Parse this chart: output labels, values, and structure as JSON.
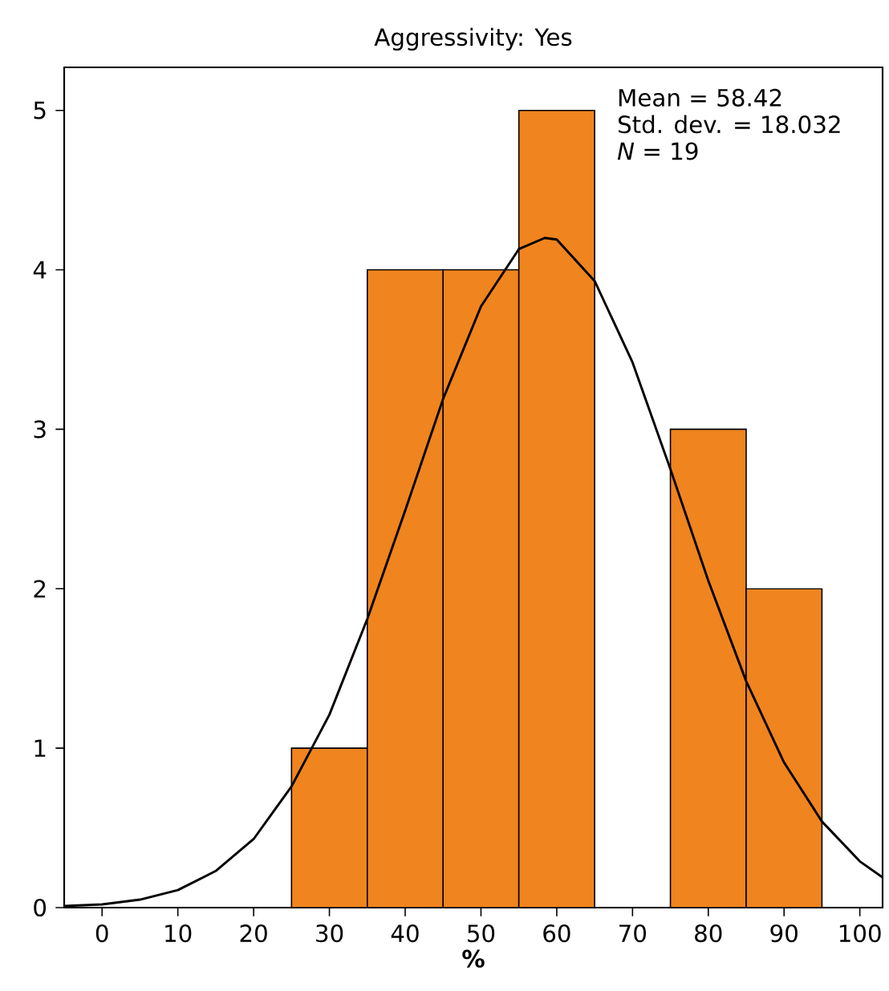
{
  "chart_data": {
    "type": "histogram",
    "title": "Aggressivity: Yes",
    "xlabel": "%",
    "bins": [
      25,
      35,
      45,
      55,
      65,
      75,
      85,
      95
    ],
    "values": [
      1,
      4,
      4,
      5,
      0,
      3,
      2
    ],
    "color": "#f0841e",
    "series": [
      {
        "type": "line",
        "color": "#000000",
        "x": [
          -5,
          0,
          5,
          10,
          15,
          20,
          25,
          30,
          35,
          40,
          45,
          50,
          55,
          58.42,
          60,
          65,
          70,
          75,
          80,
          85,
          90,
          95,
          100,
          103
        ],
        "values": [
          0.01,
          0.02,
          0.05,
          0.11,
          0.23,
          0.43,
          0.76,
          1.21,
          1.81,
          2.49,
          3.19,
          3.77,
          4.13,
          4.2,
          4.19,
          3.93,
          3.42,
          2.75,
          2.05,
          1.42,
          0.91,
          0.54,
          0.29,
          0.19
        ]
      }
    ],
    "annotations": [
      "Mean = 58.42",
      "Std. dev. = 18.032",
      "*N* = 19"
    ],
    "xlim": [
      -5,
      103
    ],
    "ylim": [
      0,
      5.27
    ],
    "xticks": [
      0,
      10,
      20,
      30,
      40,
      50,
      60,
      70,
      80,
      90,
      100
    ],
    "yticks": [
      0,
      1,
      2,
      3,
      4,
      5
    ],
    "marker": "none",
    "line_style": "solid"
  }
}
